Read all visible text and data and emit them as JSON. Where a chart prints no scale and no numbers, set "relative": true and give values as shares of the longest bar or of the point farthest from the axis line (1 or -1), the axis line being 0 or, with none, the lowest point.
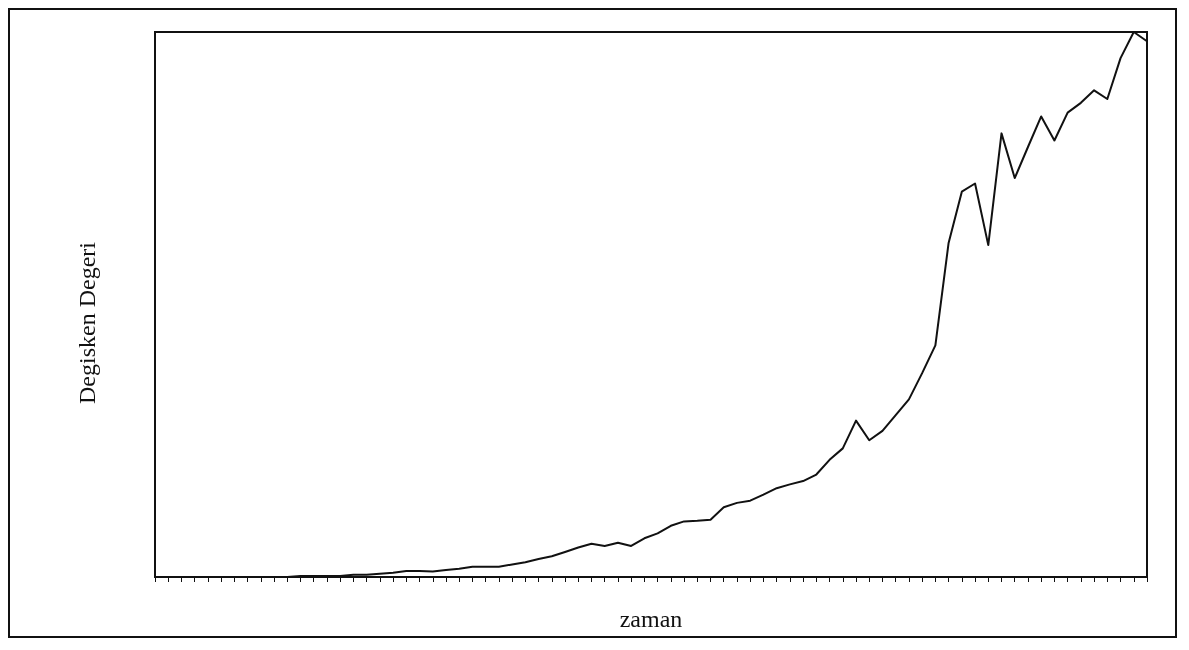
{
  "chart_data": {
    "type": "line",
    "xlabel": "zaman",
    "ylabel": "Degisken Degeri",
    "relative": true,
    "marker": "none",
    "line_style": "solid",
    "categories": [
      null,
      null,
      null,
      null,
      null,
      null,
      null,
      null,
      null,
      null,
      null,
      null,
      null,
      null,
      null,
      null,
      null,
      null,
      null,
      null,
      null,
      null,
      null,
      null,
      null,
      null,
      null,
      null,
      null,
      null,
      null,
      null,
      null,
      null,
      null,
      null,
      null,
      null,
      null,
      null,
      null,
      null,
      null,
      null,
      null,
      null,
      null,
      null,
      null,
      null,
      null,
      null,
      null,
      null,
      null,
      null,
      null,
      null,
      null,
      null,
      null,
      null,
      null,
      null,
      null,
      null,
      null,
      null,
      null,
      null,
      null,
      null,
      null,
      null,
      null,
      null
    ],
    "series": [
      {
        "color": "#111111",
        "values": [
          0,
          0,
          0,
          0,
          0,
          0,
          0,
          0,
          0,
          0,
          0,
          0.002,
          0.002,
          0.002,
          0.002,
          0.004,
          0.004,
          0.006,
          0.008,
          0.011,
          0.011,
          0.01,
          0.013,
          0.015,
          0.019,
          0.019,
          0.019,
          0.023,
          0.027,
          0.033,
          0.038,
          0.046,
          0.054,
          0.061,
          0.057,
          0.063,
          0.057,
          0.071,
          0.08,
          0.094,
          0.102,
          0.103,
          0.105,
          0.128,
          0.136,
          0.14,
          0.151,
          0.163,
          0.17,
          0.176,
          0.188,
          0.215,
          0.236,
          0.287,
          0.251,
          0.268,
          0.297,
          0.326,
          0.374,
          0.425,
          0.613,
          0.707,
          0.722,
          0.609,
          0.814,
          0.732,
          0.789,
          0.845,
          0.801,
          0.852,
          0.87,
          0.893,
          0.877,
          0.952,
          1,
          0.983
        ]
      }
    ]
  }
}
